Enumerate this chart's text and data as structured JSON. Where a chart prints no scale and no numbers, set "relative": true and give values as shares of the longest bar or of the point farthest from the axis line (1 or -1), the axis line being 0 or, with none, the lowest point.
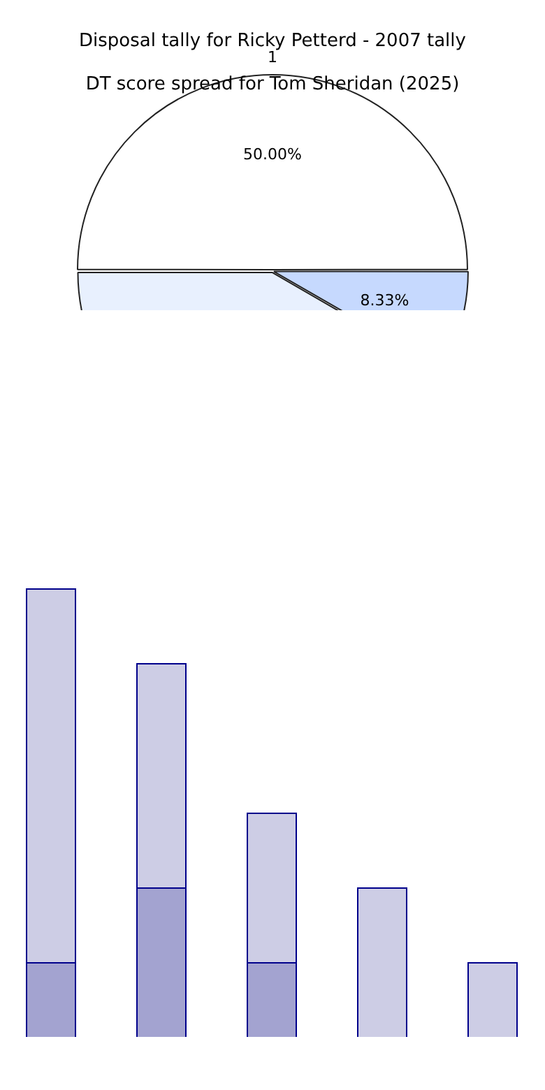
{
  "chart_data": [
    {
      "type": "pie",
      "title": "Disposal tally for Ricky Petterd - 2007 tally",
      "subtitle": "DT score spread for Tom Sheridan (2025)",
      "categories": [
        "1",
        null,
        null
      ],
      "values": [
        50,
        8.33,
        41.67
      ],
      "colors": [
        "#ffffff",
        "#c6d9fe",
        "#e8f0fe"
      ],
      "value_labels": [
        "50.00%",
        "8.33%",
        null
      ],
      "legend": false
    },
    {
      "type": "bar",
      "relative": true,
      "stacked": true,
      "categories": [
        null,
        null,
        null,
        null,
        null
      ],
      "legend": false,
      "series": [
        {
          "color": "#a3a3d0",
          "values": [
            0.1667,
            0.3333,
            0.1667,
            0,
            0
          ]
        },
        {
          "color": "#cdcde5",
          "values": [
            0.8333,
            0.5,
            0.3333,
            0.3333,
            0.1667
          ]
        }
      ]
    }
  ]
}
